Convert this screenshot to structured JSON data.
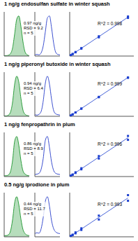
{
  "chart_data": [
    {
      "type": "area",
      "title": "1 ng/g endosulfan sulfate in winter squash",
      "annotations": [
        "0.97 ng/g",
        "RSD = 9.2",
        "n = 5"
      ],
      "x": [
        0,
        1,
        2,
        3,
        4,
        5,
        6,
        7,
        8,
        9,
        10,
        11,
        12
      ],
      "values": [
        1,
        1,
        2,
        6,
        20,
        55,
        92,
        100,
        74,
        35,
        10,
        3,
        1
      ],
      "color": "#2e9e3e",
      "xlim": [
        0,
        12
      ],
      "ylim": [
        0,
        110
      ],
      "tick_labels": false
    },
    {
      "type": "line",
      "x": [
        0,
        1,
        2,
        3,
        4,
        5,
        6,
        7,
        8,
        9,
        10,
        11,
        12
      ],
      "values": [
        3,
        4,
        3,
        8,
        25,
        60,
        95,
        100,
        70,
        32,
        9,
        4,
        3
      ],
      "color": "#3b4fd0",
      "xlim": [
        0,
        12
      ],
      "ylim": [
        0,
        110
      ],
      "tick_labels": false
    },
    {
      "type": "scatter",
      "annotations": [
        "R^2 = 0.998"
      ],
      "series": [
        {
          "type": "scatter",
          "x": [
            1,
            1,
            2,
            2,
            5,
            5,
            10,
            10,
            20,
            20,
            50,
            50,
            100,
            100
          ],
          "values": [
            1.2,
            1.0,
            2.3,
            2.1,
            5.4,
            5.9,
            11.5,
            10.6,
            22.5,
            21.0,
            56,
            53,
            108,
            112
          ],
          "color": "#1c3fcf"
        },
        {
          "type": "line",
          "x": [
            0,
            100
          ],
          "values": [
            0,
            110
          ],
          "color": "#1c3fcf"
        }
      ],
      "xlim": [
        0,
        110
      ],
      "ylim": [
        0,
        125
      ],
      "tick_labels": false
    },
    {
      "type": "area",
      "title": "1 ng/g piperonyl butoxide in winter squash",
      "annotations": [
        "0.94 ng/g",
        "RSD = 6.4",
        "n = 5"
      ],
      "x": [
        0,
        1,
        2,
        3,
        4,
        5,
        6,
        7,
        8,
        9,
        10,
        11,
        12
      ],
      "values": [
        1,
        1,
        3,
        10,
        35,
        80,
        100,
        85,
        45,
        15,
        5,
        2,
        1
      ],
      "color": "#2e9e3e",
      "xlim": [
        0,
        12
      ],
      "ylim": [
        0,
        110
      ],
      "tick_labels": false
    },
    {
      "type": "line",
      "x": [
        0,
        1,
        2,
        3,
        4,
        5,
        6,
        7,
        8,
        9,
        10,
        11,
        12
      ],
      "values": [
        4,
        3,
        5,
        12,
        38,
        82,
        100,
        80,
        42,
        14,
        6,
        4,
        3
      ],
      "color": "#3b4fd0",
      "xlim": [
        0,
        12
      ],
      "ylim": [
        0,
        110
      ],
      "tick_labels": false
    },
    {
      "type": "scatter",
      "annotations": [
        "R^2 = 0.999"
      ],
      "series": [
        {
          "type": "scatter",
          "x": [
            1,
            1,
            2,
            2,
            5,
            5,
            10,
            10,
            20,
            20,
            50,
            50,
            100,
            100
          ],
          "values": [
            1.1,
            1.0,
            2.2,
            2.0,
            5.5,
            5.3,
            11.0,
            10.8,
            22.0,
            21.5,
            55,
            54,
            109,
            110
          ],
          "color": "#1c3fcf"
        },
        {
          "type": "line",
          "x": [
            0,
            100
          ],
          "values": [
            0,
            110
          ],
          "color": "#1c3fcf"
        }
      ],
      "xlim": [
        0,
        110
      ],
      "ylim": [
        0,
        125
      ],
      "tick_labels": false
    },
    {
      "type": "area",
      "title": "1 ng/g fenpropathrin in plum",
      "annotations": [
        "0.86 ng/g",
        "RSD = 8.9",
        "n = 5"
      ],
      "x": [
        0,
        1,
        2,
        3,
        4,
        5,
        6,
        7,
        8,
        9,
        10,
        11,
        12
      ],
      "values": [
        2,
        2,
        4,
        12,
        40,
        88,
        100,
        78,
        40,
        14,
        6,
        3,
        2
      ],
      "color": "#2e9e3e",
      "xlim": [
        0,
        12
      ],
      "ylim": [
        0,
        110
      ],
      "tick_labels": false
    },
    {
      "type": "line",
      "x": [
        0,
        1,
        2,
        3,
        4,
        5,
        6,
        7,
        8,
        9,
        10,
        11,
        12
      ],
      "values": [
        5,
        6,
        8,
        18,
        45,
        90,
        100,
        72,
        36,
        15,
        8,
        6,
        5
      ],
      "color": "#3b4fd0",
      "xlim": [
        0,
        12
      ],
      "ylim": [
        0,
        110
      ],
      "tick_labels": false
    },
    {
      "type": "scatter",
      "annotations": [
        "R^2 = 0.996"
      ],
      "series": [
        {
          "type": "scatter",
          "x": [
            1,
            1,
            2,
            2,
            5,
            5,
            10,
            10,
            20,
            20,
            50,
            50,
            100,
            100
          ],
          "values": [
            1.3,
            0.9,
            2.4,
            1.9,
            5.8,
            5.0,
            12.0,
            10.2,
            23.5,
            20.5,
            58,
            51,
            104,
            115
          ],
          "color": "#1c3fcf"
        },
        {
          "type": "line",
          "x": [
            0,
            100
          ],
          "values": [
            0,
            110
          ],
          "color": "#1c3fcf"
        }
      ],
      "xlim": [
        0,
        110
      ],
      "ylim": [
        0,
        125
      ],
      "tick_labels": false
    },
    {
      "type": "area",
      "title": "0.5 ng/g iprodione in plum",
      "annotations": [
        "0.44 ng/g",
        "RSD = 11.7",
        "n = 5"
      ],
      "x": [
        0,
        1,
        2,
        3,
        4,
        5,
        6,
        7,
        8,
        9,
        10,
        11,
        12
      ],
      "values": [
        3,
        3,
        5,
        14,
        42,
        85,
        100,
        80,
        44,
        18,
        8,
        4,
        3
      ],
      "color": "#2e9e3e",
      "xlim": [
        0,
        12
      ],
      "ylim": [
        0,
        110
      ],
      "tick_labels": false
    },
    {
      "type": "line",
      "x": [
        0,
        1,
        2,
        3,
        4,
        5,
        6,
        7,
        8,
        9,
        10,
        11,
        12
      ],
      "values": [
        8,
        10,
        9,
        20,
        48,
        88,
        100,
        76,
        40,
        20,
        12,
        9,
        8
      ],
      "color": "#3b4fd0",
      "xlim": [
        0,
        12
      ],
      "ylim": [
        0,
        110
      ],
      "tick_labels": false
    },
    {
      "type": "scatter",
      "annotations": [
        "R^2 = 0.993"
      ],
      "series": [
        {
          "type": "scatter",
          "x": [
            1,
            1,
            2,
            2,
            5,
            5,
            10,
            10,
            20,
            20,
            50,
            50,
            100,
            100
          ],
          "values": [
            1.4,
            0.8,
            2.6,
            1.8,
            6.0,
            4.8,
            12.5,
            9.8,
            24.0,
            19.5,
            60,
            49,
            102,
            118
          ],
          "color": "#1c3fcf"
        },
        {
          "type": "line",
          "x": [
            0,
            100
          ],
          "values": [
            0,
            110
          ],
          "color": "#1c3fcf"
        }
      ],
      "xlim": [
        0,
        110
      ],
      "ylim": [
        0,
        125
      ],
      "tick_labels": false
    }
  ]
}
